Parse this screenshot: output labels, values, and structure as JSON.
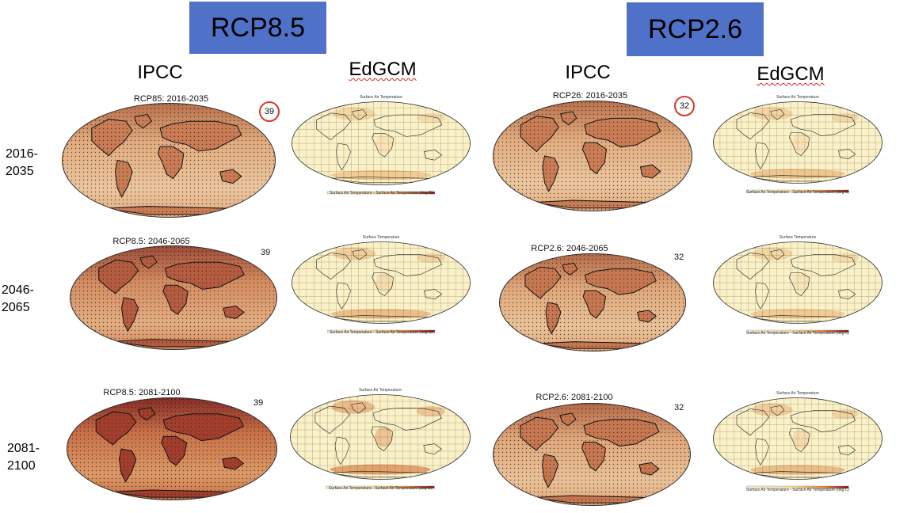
{
  "scenarios": [
    {
      "label": "RCP8.5"
    },
    {
      "label": "RCP2.6"
    }
  ],
  "columns": {
    "ipcc": "IPCC",
    "edgcm": "EdGCM"
  },
  "rows": [
    {
      "line1": "2016-",
      "line2": "2035"
    },
    {
      "line1": "2046-",
      "line2": "2065"
    },
    {
      "line1": "2081-",
      "line2": "2100"
    }
  ],
  "ipcc_maps": [
    {
      "title": "RCP85: 2016-2035",
      "count": "39",
      "circled": true,
      "warmth": 0.35
    },
    {
      "title": "RCP8.5: 2046-2065",
      "count": "39",
      "circled": false,
      "warmth": 0.65
    },
    {
      "title": "RCP8.5: 2081-2100",
      "count": "39",
      "circled": false,
      "warmth": 0.9
    },
    {
      "title": "RCP26: 2016-2035",
      "count": "32",
      "circled": true,
      "warmth": 0.35
    },
    {
      "title": "RCP2.6: 2046-2065",
      "count": "32",
      "circled": false,
      "warmth": 0.4
    },
    {
      "title": "RCP2.6: 2081-2100",
      "count": "32",
      "circled": false,
      "warmth": 0.4
    }
  ],
  "edgcm_maps": [
    {
      "title": "Surface Air Temperature",
      "colorbar": "Surface Air Temperature - Surface Air Temperature (deg C)",
      "warmth": 0.15
    },
    {
      "title": "Surface Temperature",
      "colorbar": "Surface Air Temperature - Surface Air Temperature (deg C)",
      "warmth": 0.3
    },
    {
      "title": "Surface Air Temperature",
      "colorbar": "Surface Air Temperature - Surface Air Temperature (deg C)",
      "warmth": 0.6
    },
    {
      "title": "Surface Air Temperature",
      "colorbar": "Surface Air Temperature - Surface Air Temperature (deg C)",
      "warmth": 0.2
    },
    {
      "title": "Surface Temperature",
      "colorbar": "Surface Air Temperature - Surface Air Temperature (deg C)",
      "warmth": 0.15
    },
    {
      "title": "Surface Air Temperature",
      "colorbar": "Surface Air Temperature - Surface Air Temperature (deg C)",
      "warmth": 0.3
    }
  ]
}
